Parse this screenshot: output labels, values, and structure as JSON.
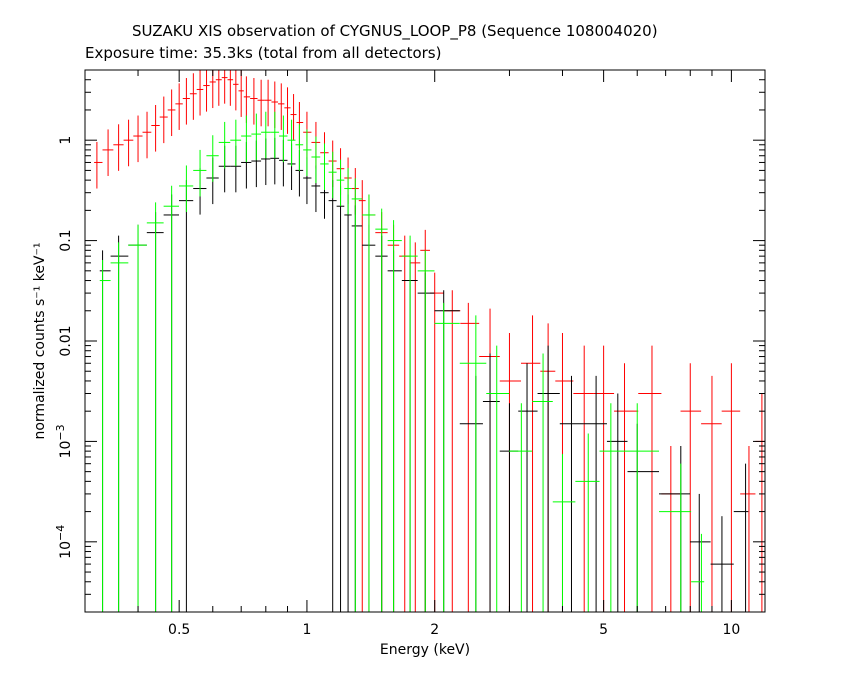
{
  "header": {
    "title": "SUZAKU XIS observation of CYGNUS_LOOP_P8 (Sequence 108004020)",
    "subtitle": "Exposure time: 35.3ks (total from all detectors)"
  },
  "chart_data": {
    "type": "scatter",
    "title": "SUZAKU XIS observation of CYGNUS_LOOP_P8 (Sequence 108004020)",
    "subtitle": "Exposure time: 35.3ks (total from all detectors)",
    "xlabel": "Energy (keV)",
    "ylabel": "normalized counts s⁻¹ keV⁻¹",
    "x_scale": "log",
    "y_scale": "log",
    "xlim": [
      0.3,
      12
    ],
    "ylim": [
      2e-05,
      5
    ],
    "x_ticks": [
      {
        "value": 0.5,
        "label": "0.5"
      },
      {
        "value": 1,
        "label": "1"
      },
      {
        "value": 2,
        "label": "2"
      },
      {
        "value": 5,
        "label": "5"
      },
      {
        "value": 10,
        "label": "10"
      }
    ],
    "y_ticks": [
      {
        "value": 0.0001,
        "label": "10",
        "exp": "−4"
      },
      {
        "value": 0.001,
        "label": "10",
        "exp": "−3"
      },
      {
        "value": 0.01,
        "label": "0.01"
      },
      {
        "value": 0.1,
        "label": "0.1"
      },
      {
        "value": 1,
        "label": "1"
      }
    ],
    "series": [
      {
        "color": "#ff0000",
        "points": [
          [
            0.32,
            0.6
          ],
          [
            0.34,
            0.8
          ],
          [
            0.36,
            0.9
          ],
          [
            0.38,
            1.0
          ],
          [
            0.4,
            1.1
          ],
          [
            0.42,
            1.2
          ],
          [
            0.44,
            1.4
          ],
          [
            0.46,
            1.7
          ],
          [
            0.48,
            2.0
          ],
          [
            0.5,
            2.3
          ],
          [
            0.52,
            2.6
          ],
          [
            0.54,
            2.9
          ],
          [
            0.56,
            3.2
          ],
          [
            0.58,
            3.5
          ],
          [
            0.6,
            3.8
          ],
          [
            0.62,
            4.0
          ],
          [
            0.64,
            4.2
          ],
          [
            0.66,
            4.0
          ],
          [
            0.68,
            3.6
          ],
          [
            0.7,
            3.1
          ],
          [
            0.72,
            2.7
          ],
          [
            0.75,
            2.6
          ],
          [
            0.78,
            2.5
          ],
          [
            0.81,
            2.5
          ],
          [
            0.84,
            2.4
          ],
          [
            0.87,
            2.3
          ],
          [
            0.9,
            2.1
          ],
          [
            0.93,
            1.8
          ],
          [
            0.96,
            1.5
          ],
          [
            1.0,
            1.2
          ],
          [
            1.05,
            0.95
          ],
          [
            1.1,
            0.75
          ],
          [
            1.15,
            0.62
          ],
          [
            1.2,
            0.52
          ],
          [
            1.25,
            0.42
          ],
          [
            1.3,
            0.33
          ],
          [
            1.35,
            0.25
          ],
          [
            1.4,
            0.18
          ],
          [
            1.5,
            0.12
          ],
          [
            1.6,
            0.09
          ],
          [
            1.7,
            0.07
          ],
          [
            1.8,
            0.06
          ],
          [
            1.9,
            0.08
          ],
          [
            2.0,
            0.03
          ],
          [
            2.2,
            0.02
          ],
          [
            2.4,
            0.015
          ],
          [
            2.7,
            0.007
          ],
          [
            3.0,
            0.004
          ],
          [
            3.4,
            0.006
          ],
          [
            3.7,
            0.005
          ],
          [
            4.0,
            0.004
          ],
          [
            4.5,
            0.003
          ],
          [
            5.0,
            0.003
          ],
          [
            5.6,
            0.002
          ],
          [
            6.5,
            0.003
          ],
          [
            7.2,
            0.0003
          ],
          [
            8.0,
            0.002
          ],
          [
            9.0,
            0.0015
          ],
          [
            10.0,
            0.002
          ],
          [
            11.0,
            0.0003
          ],
          [
            11.8,
            0.001
          ]
        ]
      },
      {
        "color": "#000000",
        "points": [
          [
            0.33,
            0.05
          ],
          [
            0.36,
            0.07
          ],
          [
            0.4,
            0.09
          ],
          [
            0.44,
            0.12
          ],
          [
            0.48,
            0.18
          ],
          [
            0.52,
            0.25
          ],
          [
            0.56,
            0.33
          ],
          [
            0.6,
            0.42
          ],
          [
            0.64,
            0.55
          ],
          [
            0.68,
            0.55
          ],
          [
            0.72,
            0.6
          ],
          [
            0.76,
            0.62
          ],
          [
            0.8,
            0.65
          ],
          [
            0.84,
            0.66
          ],
          [
            0.88,
            0.63
          ],
          [
            0.92,
            0.58
          ],
          [
            0.96,
            0.5
          ],
          [
            1.0,
            0.42
          ],
          [
            1.05,
            0.35
          ],
          [
            1.1,
            0.3
          ],
          [
            1.15,
            0.25
          ],
          [
            1.2,
            0.22
          ],
          [
            1.25,
            0.18
          ],
          [
            1.3,
            0.14
          ],
          [
            1.4,
            0.09
          ],
          [
            1.5,
            0.07
          ],
          [
            1.6,
            0.05
          ],
          [
            1.75,
            0.04
          ],
          [
            1.9,
            0.03
          ],
          [
            2.1,
            0.02
          ],
          [
            2.5,
            0.0015
          ],
          [
            2.7,
            0.0025
          ],
          [
            3.0,
            0.0008
          ],
          [
            3.3,
            0.002
          ],
          [
            3.7,
            0.003
          ],
          [
            4.2,
            0.0015
          ],
          [
            4.8,
            0.0015
          ],
          [
            5.4,
            0.001
          ],
          [
            6.0,
            0.0005
          ],
          [
            7.6,
            0.0003
          ],
          [
            8.4,
            0.0001
          ],
          [
            9.5,
            6e-05
          ],
          [
            10.8,
            0.0002
          ]
        ]
      },
      {
        "color": "#00ff00",
        "points": [
          [
            0.33,
            0.04
          ],
          [
            0.36,
            0.06
          ],
          [
            0.4,
            0.09
          ],
          [
            0.44,
            0.15
          ],
          [
            0.48,
            0.22
          ],
          [
            0.52,
            0.35
          ],
          [
            0.56,
            0.5
          ],
          [
            0.6,
            0.7
          ],
          [
            0.64,
            0.95
          ],
          [
            0.68,
            1.0
          ],
          [
            0.72,
            1.1
          ],
          [
            0.76,
            1.15
          ],
          [
            0.8,
            1.2
          ],
          [
            0.84,
            1.2
          ],
          [
            0.88,
            1.1
          ],
          [
            0.92,
            1.0
          ],
          [
            0.96,
            0.9
          ],
          [
            1.0,
            0.8
          ],
          [
            1.05,
            0.68
          ],
          [
            1.1,
            0.58
          ],
          [
            1.15,
            0.48
          ],
          [
            1.2,
            0.4
          ],
          [
            1.25,
            0.33
          ],
          [
            1.3,
            0.26
          ],
          [
            1.4,
            0.18
          ],
          [
            1.5,
            0.13
          ],
          [
            1.6,
            0.1
          ],
          [
            1.75,
            0.07
          ],
          [
            1.9,
            0.05
          ],
          [
            2.1,
            0.015
          ],
          [
            2.5,
            0.006
          ],
          [
            2.8,
            0.003
          ],
          [
            3.2,
            0.0008
          ],
          [
            3.6,
            0.0025
          ],
          [
            4.0,
            0.00025
          ],
          [
            4.6,
            0.0004
          ],
          [
            5.2,
            0.0008
          ],
          [
            6.0,
            0.0008
          ],
          [
            7.6,
            0.0002
          ],
          [
            8.5,
            4e-05
          ]
        ]
      }
    ]
  }
}
